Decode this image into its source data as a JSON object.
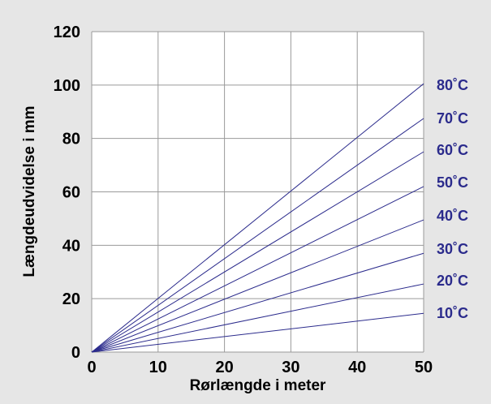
{
  "chart_data": {
    "type": "line",
    "title": "",
    "xlabel": "Rørlængde i meter",
    "ylabel": "Længdeudvidelse i mm",
    "xlim": [
      0,
      50
    ],
    "ylim": [
      0,
      120
    ],
    "x_ticks": [
      "0",
      "10",
      "20",
      "30",
      "40",
      "50"
    ],
    "y_ticks": [
      "0",
      "20",
      "40",
      "60",
      "80",
      "100",
      "120"
    ],
    "x_tick_values": [
      0,
      10,
      20,
      30,
      40,
      50
    ],
    "y_tick_values": [
      0,
      20,
      40,
      60,
      80,
      100,
      120
    ],
    "grid": true,
    "legend": "right-end labels",
    "series": [
      {
        "name": "80˚C",
        "x": [
          0,
          50
        ],
        "y": [
          0,
          100.5
        ]
      },
      {
        "name": "70˚C",
        "x": [
          0,
          50
        ],
        "y": [
          0,
          87.5
        ]
      },
      {
        "name": "60˚C",
        "x": [
          0,
          50
        ],
        "y": [
          0,
          75
        ]
      },
      {
        "name": "50˚C",
        "x": [
          0,
          50
        ],
        "y": [
          0,
          62
        ]
      },
      {
        "name": "40˚C",
        "x": [
          0,
          50
        ],
        "y": [
          0,
          49.5
        ]
      },
      {
        "name": "30˚C",
        "x": [
          0,
          50
        ],
        "y": [
          0,
          37
        ]
      },
      {
        "name": "20˚C",
        "x": [
          0,
          50
        ],
        "y": [
          0,
          25.5
        ]
      },
      {
        "name": "10˚C",
        "x": [
          0,
          50
        ],
        "y": [
          0,
          14.5
        ]
      }
    ],
    "colors": {
      "background": "#e6e6e6",
      "plot_background": "#ffffff",
      "grid": "#9a9a9a",
      "line": "#2b2b8c",
      "series_label": "#2b2b8c"
    }
  }
}
